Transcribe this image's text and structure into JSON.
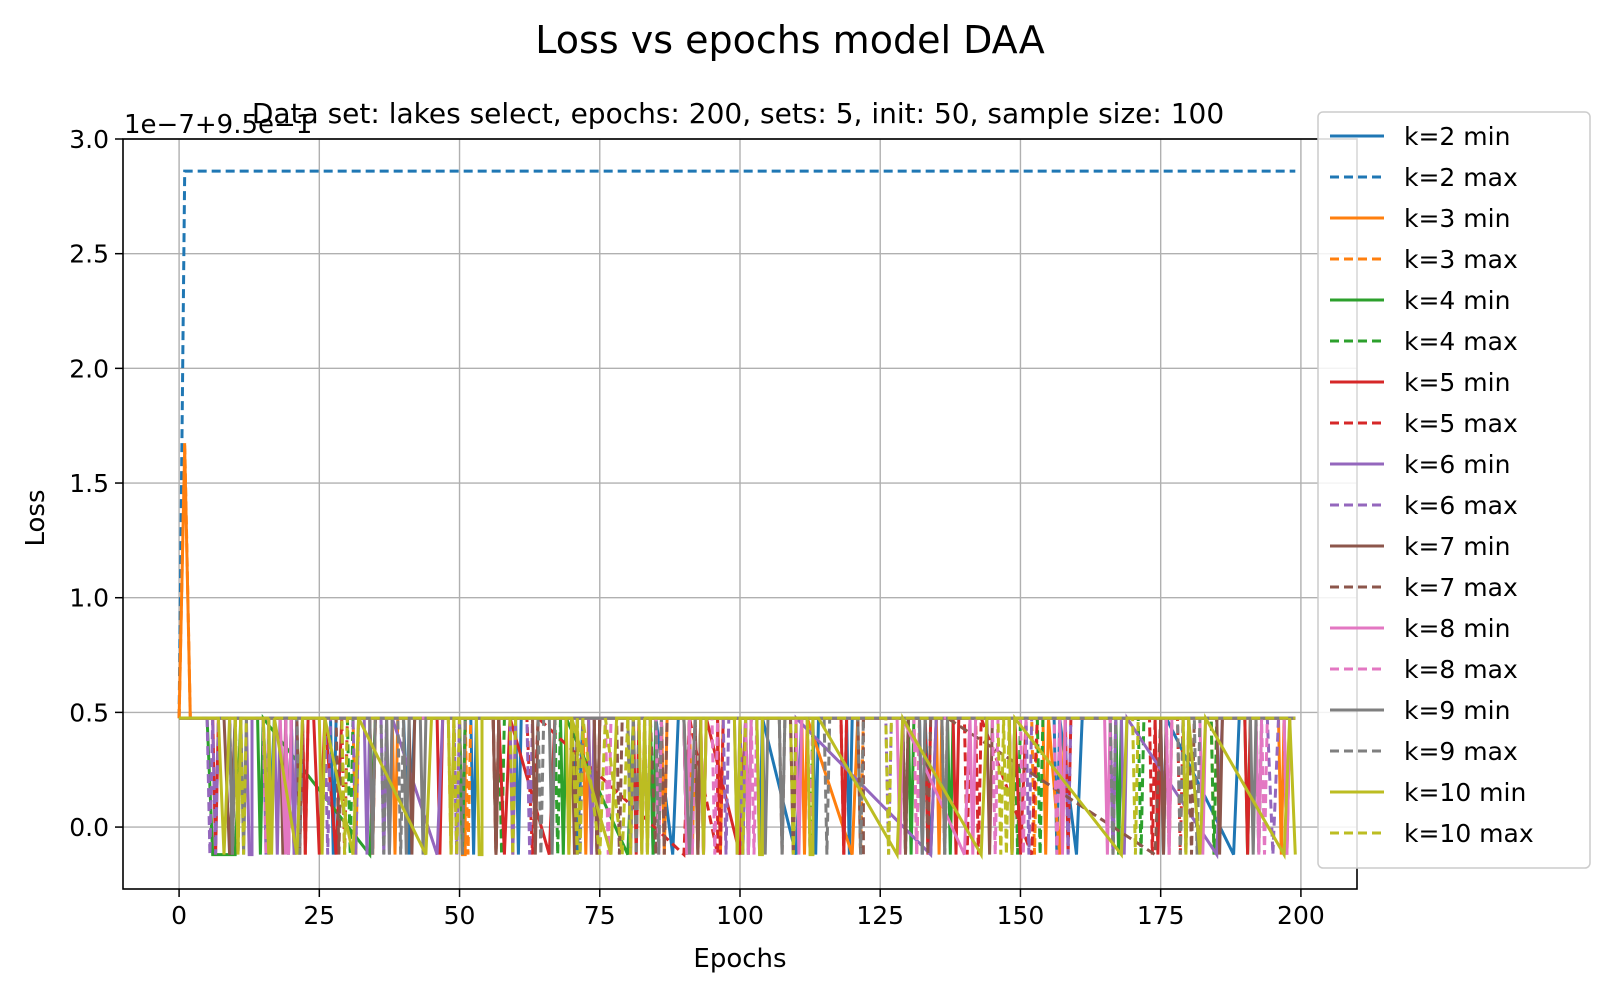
{
  "chart_data": {
    "type": "line",
    "title": "Loss vs epochs model DAA",
    "subtitle": "Data set: lakes select, epochs: 200, sets: 5, init: 50, sample size: 100",
    "xlabel": "Epochs",
    "ylabel": "Loss",
    "offset_text": "1e−7+9.5e−1",
    "xlim": [
      -10,
      210
    ],
    "ylim": [
      -0.27,
      3.0
    ],
    "xticks": [
      0,
      25,
      50,
      75,
      100,
      125,
      150,
      175,
      200
    ],
    "yticks": [
      0.0,
      0.5,
      1.0,
      1.5,
      2.0,
      2.5,
      3.0
    ],
    "grid": true,
    "legend_position": "right",
    "low_value": -0.12,
    "high_value": 0.475,
    "series": [
      {
        "name": "k=2 min",
        "color": "#1f77b4",
        "style": "solid",
        "values": {
          "segments": [
            [
              0,
              0.475
            ],
            [
              15,
              0.475
            ],
            [
              16,
              -0.12
            ],
            [
              17,
              0.475
            ],
            [
              40,
              0.475
            ],
            [
              41,
              -0.12
            ],
            [
              42,
              0.475
            ],
            [
              70,
              0.475
            ],
            [
              71,
              -0.12
            ],
            [
              72,
              0.475
            ],
            [
              88,
              -0.12
            ],
            [
              89,
              0.475
            ],
            [
              110,
              -0.12
            ],
            [
              111,
              0.475
            ],
            [
              134,
              -0.12
            ],
            [
              135,
              0.475
            ],
            [
              160,
              -0.12
            ],
            [
              161,
              0.475
            ],
            [
              188,
              -0.12
            ],
            [
              189,
              0.475
            ],
            [
              199,
              0.475
            ]
          ]
        }
      },
      {
        "name": "k=2 max",
        "color": "#1f77b4",
        "style": "dashed",
        "values": {
          "segments": [
            [
              0,
              0.475
            ],
            [
              1,
              2.86
            ],
            [
              199,
              2.86
            ]
          ]
        }
      },
      {
        "name": "k=3 min",
        "color": "#ff7f0e",
        "style": "solid",
        "values": {
          "segments": [
            [
              0,
              0.475
            ],
            [
              1,
              1.65
            ],
            [
              2,
              0.475
            ],
            [
              50,
              0.475
            ],
            [
              51,
              -0.12
            ],
            [
              52,
              0.475
            ],
            [
              120,
              -0.12
            ],
            [
              121,
              0.475
            ],
            [
              157,
              -0.12
            ],
            [
              158,
              0.475
            ],
            [
              199,
              0.475
            ]
          ]
        }
      },
      {
        "name": "k=3 max",
        "color": "#ff7f0e",
        "style": "dashed",
        "values": {
          "segments": [
            [
              0,
              0.475
            ],
            [
              1,
              1.68
            ],
            [
              2,
              0.475
            ],
            [
              199,
              0.475
            ]
          ]
        }
      },
      {
        "name": "k=4 min",
        "color": "#2ca02c",
        "style": "solid",
        "values": {
          "segments": [
            [
              0,
              0.475
            ],
            [
              5,
              0.475
            ],
            [
              6,
              -0.12
            ],
            [
              10,
              -0.12
            ],
            [
              11,
              0.475
            ],
            [
              34,
              -0.12
            ],
            [
              35,
              0.475
            ],
            [
              80,
              -0.12
            ],
            [
              81,
              0.475
            ],
            [
              199,
              0.475
            ]
          ]
        }
      },
      {
        "name": "k=4 max",
        "color": "#2ca02c",
        "style": "dashed",
        "values": {
          "segments": [
            [
              0,
              0.475
            ],
            [
              199,
              0.475
            ]
          ]
        }
      },
      {
        "name": "k=5 min",
        "color": "#d62728",
        "style": "solid",
        "values": {
          "segments": [
            [
              0,
              0.475
            ],
            [
              24,
              0.475
            ],
            [
              25,
              -0.12
            ],
            [
              26,
              0.475
            ],
            [
              28,
              -0.12
            ],
            [
              29,
              0.475
            ],
            [
              58,
              -0.12
            ],
            [
              59,
              0.475
            ],
            [
              66,
              -0.12
            ],
            [
              67,
              0.475
            ],
            [
              100,
              -0.12
            ],
            [
              101,
              0.475
            ],
            [
              150,
              -0.12
            ],
            [
              151,
              0.475
            ],
            [
              199,
              0.475
            ]
          ]
        }
      },
      {
        "name": "k=5 max",
        "color": "#d62728",
        "style": "dashed",
        "values": {
          "segments": [
            [
              0,
              0.475
            ],
            [
              62,
              0.475
            ],
            [
              63,
              -0.12
            ],
            [
              64,
              0.475
            ],
            [
              90,
              -0.12
            ],
            [
              91,
              0.475
            ],
            [
              96,
              -0.12
            ],
            [
              97,
              0.475
            ],
            [
              152,
              -0.12
            ],
            [
              153,
              0.475
            ],
            [
              199,
              0.475
            ]
          ]
        }
      },
      {
        "name": "k=6 min",
        "color": "#9467bd",
        "style": "solid",
        "values": {
          "segments": [
            [
              0,
              0.475
            ],
            [
              12,
              0.475
            ],
            [
              13,
              -0.12
            ],
            [
              14,
              0.475
            ],
            [
              46,
              -0.12
            ],
            [
              47,
              0.475
            ],
            [
              134,
              -0.12
            ],
            [
              135,
              0.475
            ],
            [
              185,
              -0.12
            ],
            [
              186,
              0.475
            ],
            [
              199,
              0.475
            ]
          ]
        }
      },
      {
        "name": "k=6 max",
        "color": "#9467bd",
        "style": "dashed",
        "values": {
          "segments": [
            [
              0,
              0.475
            ],
            [
              194,
              0.475
            ],
            [
              195,
              -0.12
            ],
            [
              196,
              0.475
            ],
            [
              199,
              0.475
            ]
          ]
        }
      },
      {
        "name": "k=7 min",
        "color": "#8c564b",
        "style": "solid",
        "values": {
          "segments": [
            [
              0,
              0.475
            ],
            [
              8,
              0.475
            ],
            [
              9,
              -0.12
            ],
            [
              10,
              0.475
            ],
            [
              199,
              0.475
            ]
          ]
        }
      },
      {
        "name": "k=7 max",
        "color": "#8c564b",
        "style": "dashed",
        "values": {
          "segments": [
            [
              0,
              0.475
            ],
            [
              84,
              0.475
            ],
            [
              85,
              -0.12
            ],
            [
              86,
              0.475
            ],
            [
              122,
              -0.12
            ],
            [
              123,
              0.475
            ],
            [
              174,
              -0.12
            ],
            [
              175,
              0.475
            ],
            [
              199,
              0.475
            ]
          ]
        }
      },
      {
        "name": "k=8 min",
        "color": "#e377c2",
        "style": "solid",
        "values": {
          "segments": [
            [
              0,
              0.475
            ],
            [
              18,
              0.475
            ],
            [
              19,
              -0.12
            ],
            [
              140,
              -0.12
            ],
            [
              141,
              0.475
            ],
            [
              199,
              0.475
            ]
          ]
        }
      },
      {
        "name": "k=8 max",
        "color": "#e377c2",
        "style": "dashed",
        "values": {
          "segments": [
            [
              0,
              0.475
            ],
            [
              199,
              0.475
            ]
          ]
        }
      },
      {
        "name": "k=9 min",
        "color": "#7f7f7f",
        "style": "solid",
        "values": {
          "segments": [
            [
              0,
              0.475
            ],
            [
              90,
              0.475
            ],
            [
              91,
              -0.12
            ],
            [
              92,
              0.475
            ],
            [
              199,
              0.475
            ]
          ]
        }
      },
      {
        "name": "k=9 max",
        "color": "#7f7f7f",
        "style": "dashed",
        "values": {
          "segments": [
            [
              0,
              0.475
            ],
            [
              199,
              0.475
            ]
          ]
        }
      },
      {
        "name": "k=10 min",
        "color": "#bcbd22",
        "style": "solid",
        "values": {
          "segments": [
            [
              0,
              0.475
            ],
            [
              7,
              0.475
            ],
            [
              8,
              -0.12
            ],
            [
              9,
              0.475
            ],
            [
              15,
              0.475
            ],
            [
              16,
              -0.12
            ],
            [
              17,
              0.475
            ],
            [
              21,
              -0.12
            ],
            [
              22,
              0.475
            ],
            [
              31,
              -0.12
            ],
            [
              32,
              0.475
            ],
            [
              44,
              -0.12
            ],
            [
              45,
              0.475
            ],
            [
              54,
              -0.12
            ],
            [
              55,
              0.475
            ],
            [
              77,
              -0.12
            ],
            [
              78,
              0.475
            ],
            [
              104,
              -0.12
            ],
            [
              105,
              0.475
            ],
            [
              113,
              -0.12
            ],
            [
              114,
              0.475
            ],
            [
              128,
              -0.12
            ],
            [
              129,
              0.475
            ],
            [
              143,
              -0.12
            ],
            [
              144,
              0.475
            ],
            [
              168,
              -0.12
            ],
            [
              169,
              0.475
            ],
            [
              182,
              -0.12
            ],
            [
              183,
              0.475
            ],
            [
              197,
              -0.12
            ],
            [
              198,
              0.475
            ],
            [
              199,
              -0.12
            ]
          ]
        }
      },
      {
        "name": "k=10 max",
        "color": "#bcbd22",
        "style": "dashed",
        "values": {
          "segments": [
            [
              0,
              0.475
            ],
            [
              70,
              0.475
            ],
            [
              71,
              -0.12
            ],
            [
              72,
              0.475
            ],
            [
              75,
              -0.12
            ],
            [
              76,
              0.475
            ],
            [
              79,
              -0.12
            ],
            [
              80,
              0.475
            ],
            [
              199,
              0.475
            ]
          ]
        }
      }
    ],
    "noise": {
      "x_from": 5,
      "x_to": 199,
      "density_per_series": 14,
      "seed": 7
    }
  }
}
